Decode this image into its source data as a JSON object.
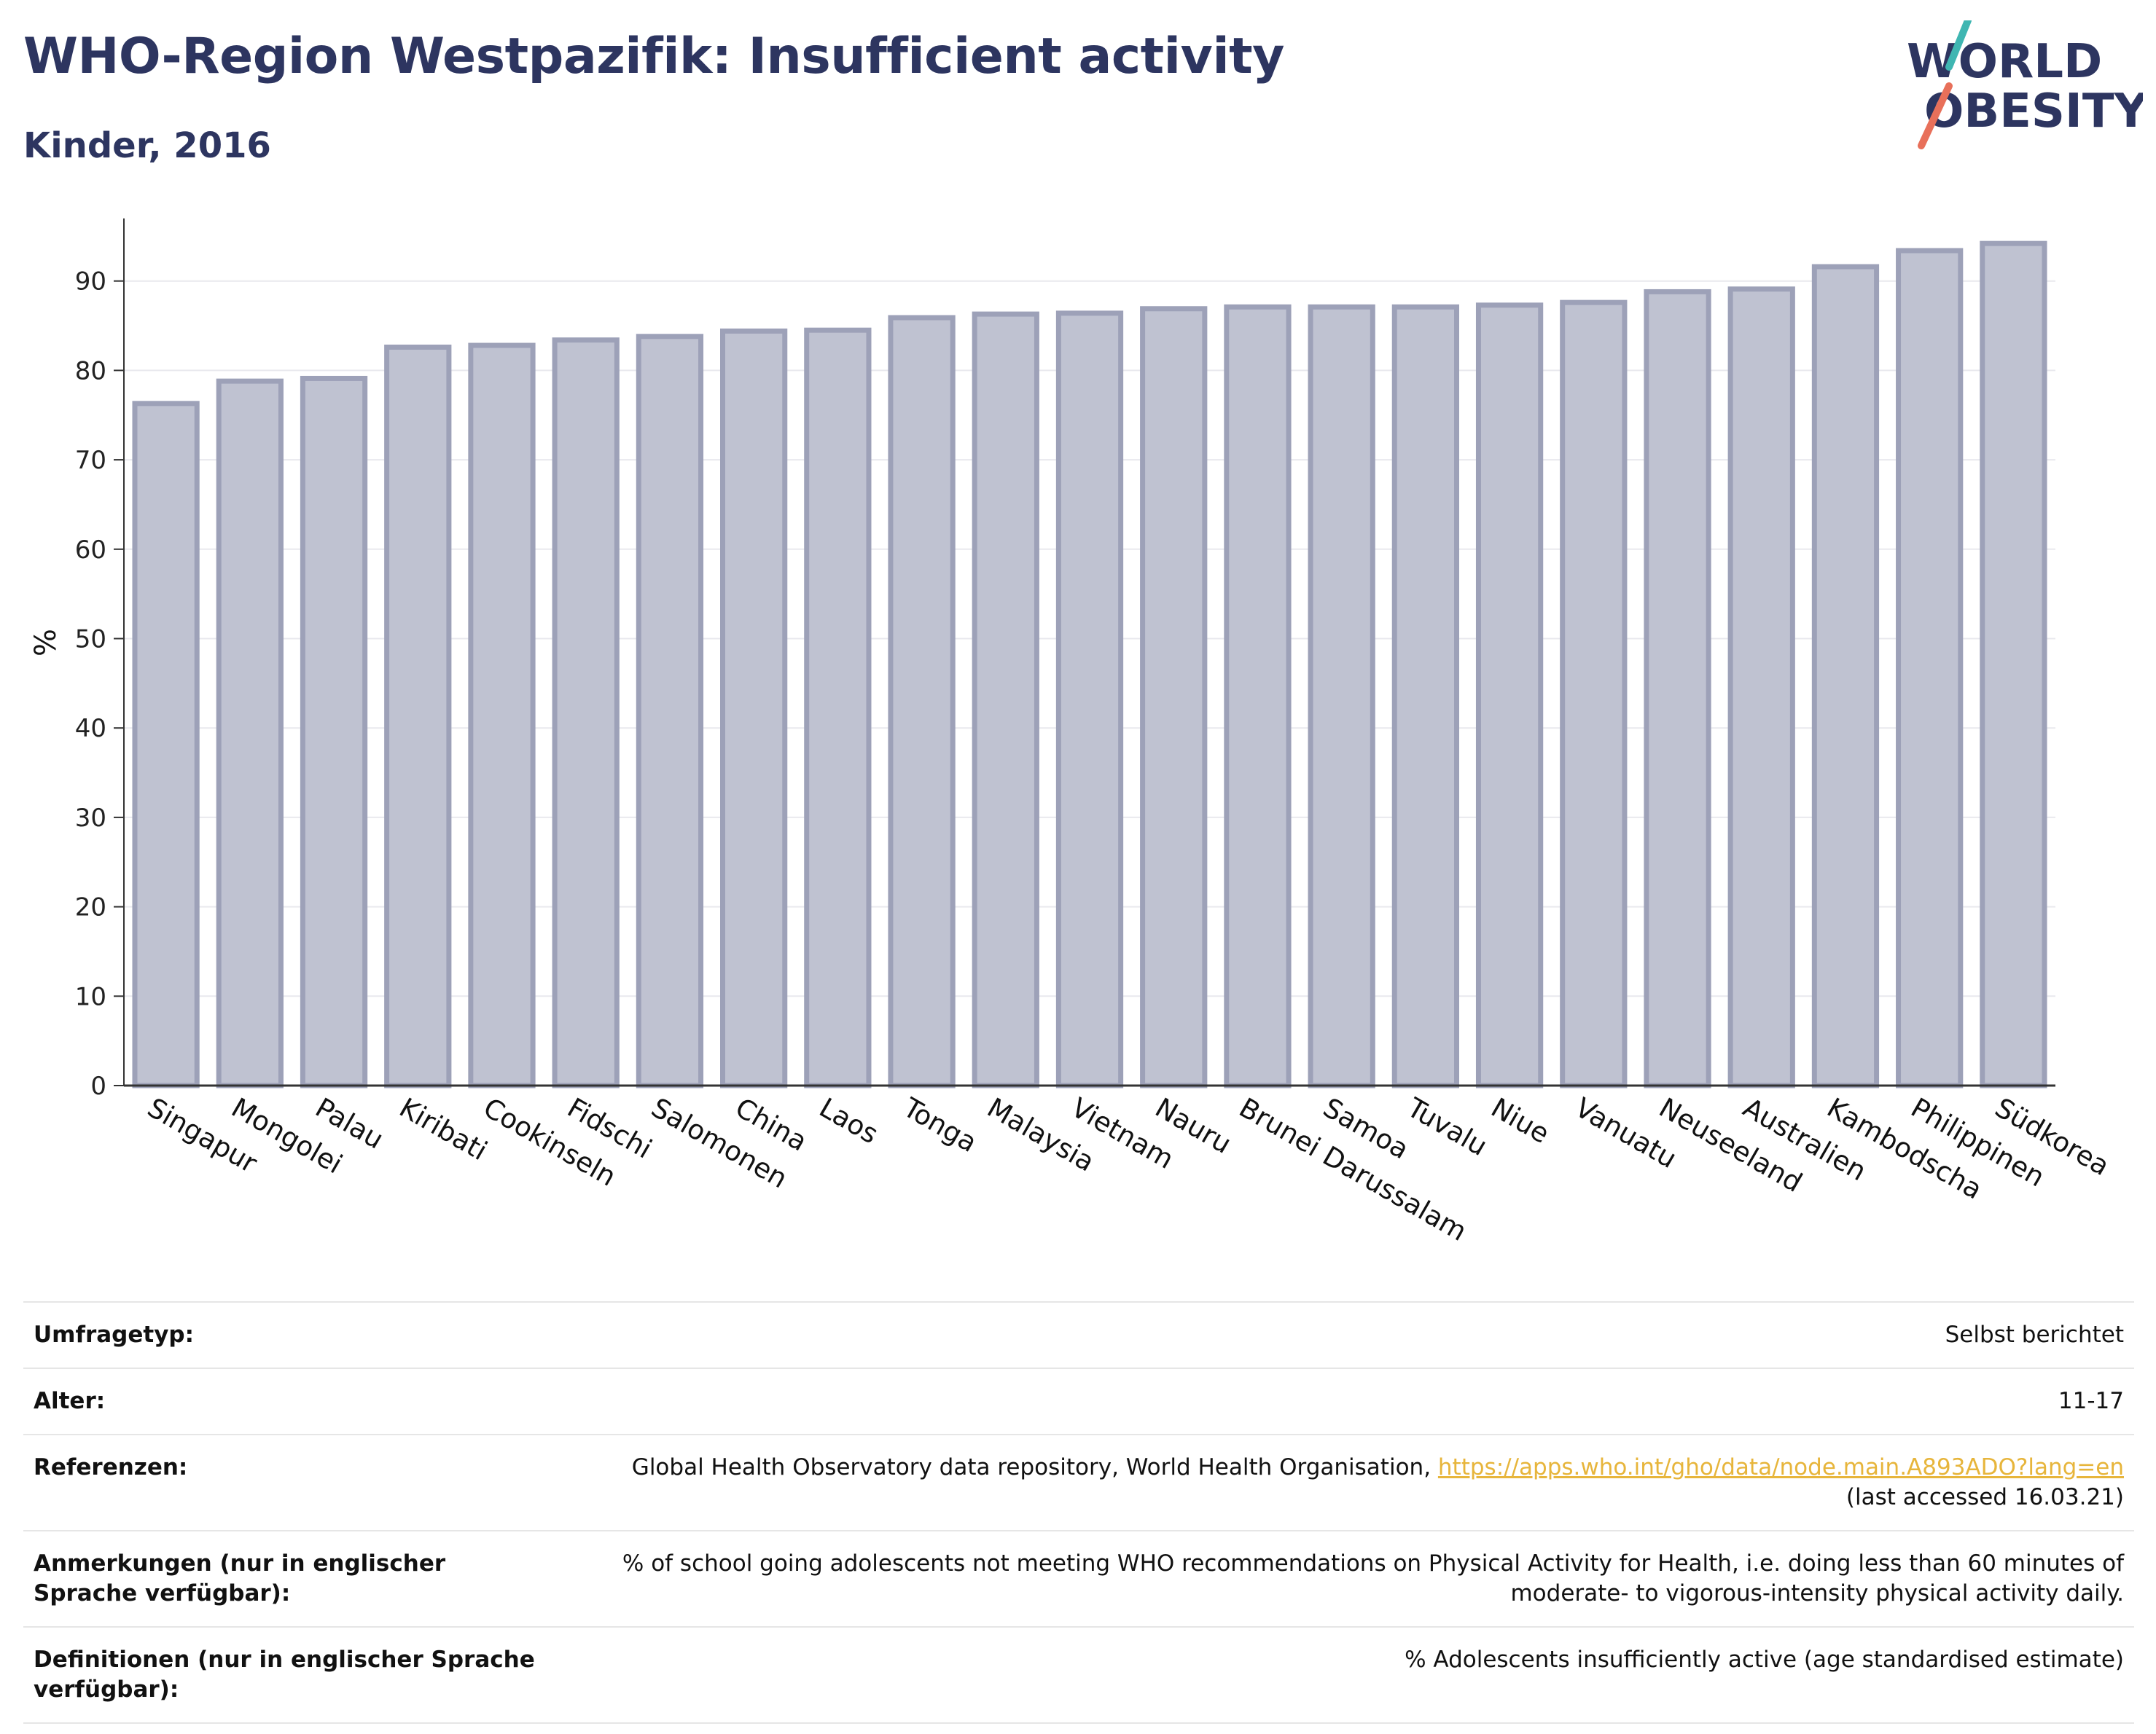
{
  "header": {
    "title": "WHO-Region Westpazifik: Insufficient activity",
    "subtitle": "Kinder, 2016"
  },
  "logo": {
    "line1": "WORLD",
    "line2": "OBESITY",
    "accent_teal": "#3fb6b2",
    "accent_coral": "#e8705a",
    "text_color": "#2d3560"
  },
  "chart_data": {
    "type": "bar",
    "title": "WHO-Region Westpazifik: Insufficient activity",
    "subtitle": "Kinder, 2016",
    "xlabel": "",
    "ylabel": "%",
    "ylim": [
      0,
      97
    ],
    "yticks": [
      0,
      10,
      20,
      30,
      40,
      50,
      60,
      70,
      80,
      90
    ],
    "grid": true,
    "bar_fill": "#bfc2d1",
    "bar_stroke": "#9da1b8",
    "categories": [
      "Singapur",
      "Mongolei",
      "Palau",
      "Kiribati",
      "Cookinseln",
      "Fidschi",
      "Salomonen",
      "China",
      "Laos",
      "Tonga",
      "Malaysia",
      "Vietnam",
      "Nauru",
      "Brunei Darussalam",
      "Samoa",
      "Tuvalu",
      "Niue",
      "Vanuatu",
      "Neuseeland",
      "Australien",
      "Kambodscha",
      "Philippinen",
      "Südkorea"
    ],
    "values": [
      76.3,
      78.8,
      79.1,
      82.6,
      82.8,
      83.4,
      83.8,
      84.4,
      84.5,
      85.9,
      86.3,
      86.4,
      86.9,
      87.1,
      87.1,
      87.1,
      87.3,
      87.6,
      88.8,
      89.1,
      91.6,
      93.4,
      94.2
    ]
  },
  "info": [
    {
      "label": "Umfragetyp:",
      "value": "Selbst berichtet"
    },
    {
      "label": "Alter:",
      "value": "11-17"
    },
    {
      "label": "Referenzen:",
      "value_before": "Global Health Observatory data repository, World Health Organisation, ",
      "link": "https://apps.who.int/gho/data/node.main.A893ADO?lang=en",
      "value_after": "(last accessed 16.03.21)"
    },
    {
      "label": "Anmerkungen (nur in englischer Sprache verfügbar):",
      "value": "% of school going adolescents not meeting WHO recommendations on Physical Activity for Health, i.e. doing less than 60 minutes of moderate- to vigorous-intensity physical activity daily."
    },
    {
      "label": "Definitionen (nur in englischer Sprache verfügbar):",
      "value": "% Adolescents insufficiently active (age standardised estimate)"
    }
  ]
}
